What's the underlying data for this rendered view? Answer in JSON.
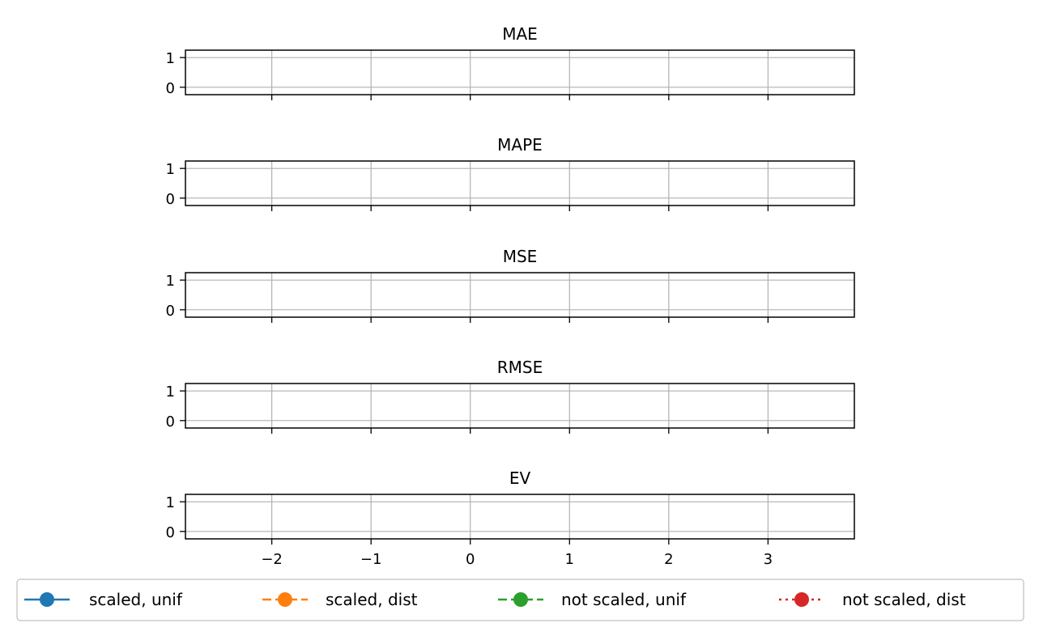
{
  "chart_data": [
    {
      "type": "line",
      "title": "MAE",
      "xlim": [
        -2.87,
        3.87
      ],
      "ylim": [
        -0.25,
        1.25
      ],
      "xticks": [
        -2,
        -1,
        0,
        1,
        2,
        3
      ],
      "yticks": [
        0,
        1
      ],
      "xtick_labels": [],
      "ytick_labels": [
        "0",
        "1"
      ],
      "grid": true,
      "series": []
    },
    {
      "type": "line",
      "title": "MAPE",
      "xlim": [
        -2.87,
        3.87
      ],
      "ylim": [
        -0.25,
        1.25
      ],
      "xticks": [
        -2,
        -1,
        0,
        1,
        2,
        3
      ],
      "yticks": [
        0,
        1
      ],
      "xtick_labels": [],
      "ytick_labels": [
        "0",
        "1"
      ],
      "grid": true,
      "series": []
    },
    {
      "type": "line",
      "title": "MSE",
      "xlim": [
        -2.87,
        3.87
      ],
      "ylim": [
        -0.25,
        1.25
      ],
      "xticks": [
        -2,
        -1,
        0,
        1,
        2,
        3
      ],
      "yticks": [
        0,
        1
      ],
      "xtick_labels": [],
      "ytick_labels": [
        "0",
        "1"
      ],
      "grid": true,
      "series": []
    },
    {
      "type": "line",
      "title": "RMSE",
      "xlim": [
        -2.87,
        3.87
      ],
      "ylim": [
        -0.25,
        1.25
      ],
      "xticks": [
        -2,
        -1,
        0,
        1,
        2,
        3
      ],
      "yticks": [
        0,
        1
      ],
      "xtick_labels": [],
      "ytick_labels": [
        "0",
        "1"
      ],
      "grid": true,
      "series": []
    },
    {
      "type": "line",
      "title": "EV",
      "xlim": [
        -2.87,
        3.87
      ],
      "ylim": [
        -0.25,
        1.25
      ],
      "xticks": [
        -2,
        -1,
        0,
        1,
        2,
        3
      ],
      "yticks": [
        0,
        1
      ],
      "xtick_labels": [
        "−2",
        "−1",
        "0",
        "1",
        "2",
        "3"
      ],
      "ytick_labels": [
        "0",
        "1"
      ],
      "grid": true,
      "series": []
    }
  ],
  "legend": {
    "placement": "bottom-center",
    "entries": [
      {
        "label": "scaled, unif",
        "color": "#1f77b4",
        "linestyle": "solid",
        "marker": "circle"
      },
      {
        "label": "scaled, dist",
        "color": "#ff7f0e",
        "linestyle": "dashed",
        "marker": "circle"
      },
      {
        "label": "not scaled, unif",
        "color": "#2ca02c",
        "linestyle": "dashed",
        "marker": "circle"
      },
      {
        "label": "not scaled, dist",
        "color": "#d62728",
        "linestyle": "dotted",
        "marker": "circle"
      }
    ]
  },
  "colors": {
    "grid": "#b0b0b0",
    "axes": "#000000",
    "legend_frame": "#cccccc"
  }
}
